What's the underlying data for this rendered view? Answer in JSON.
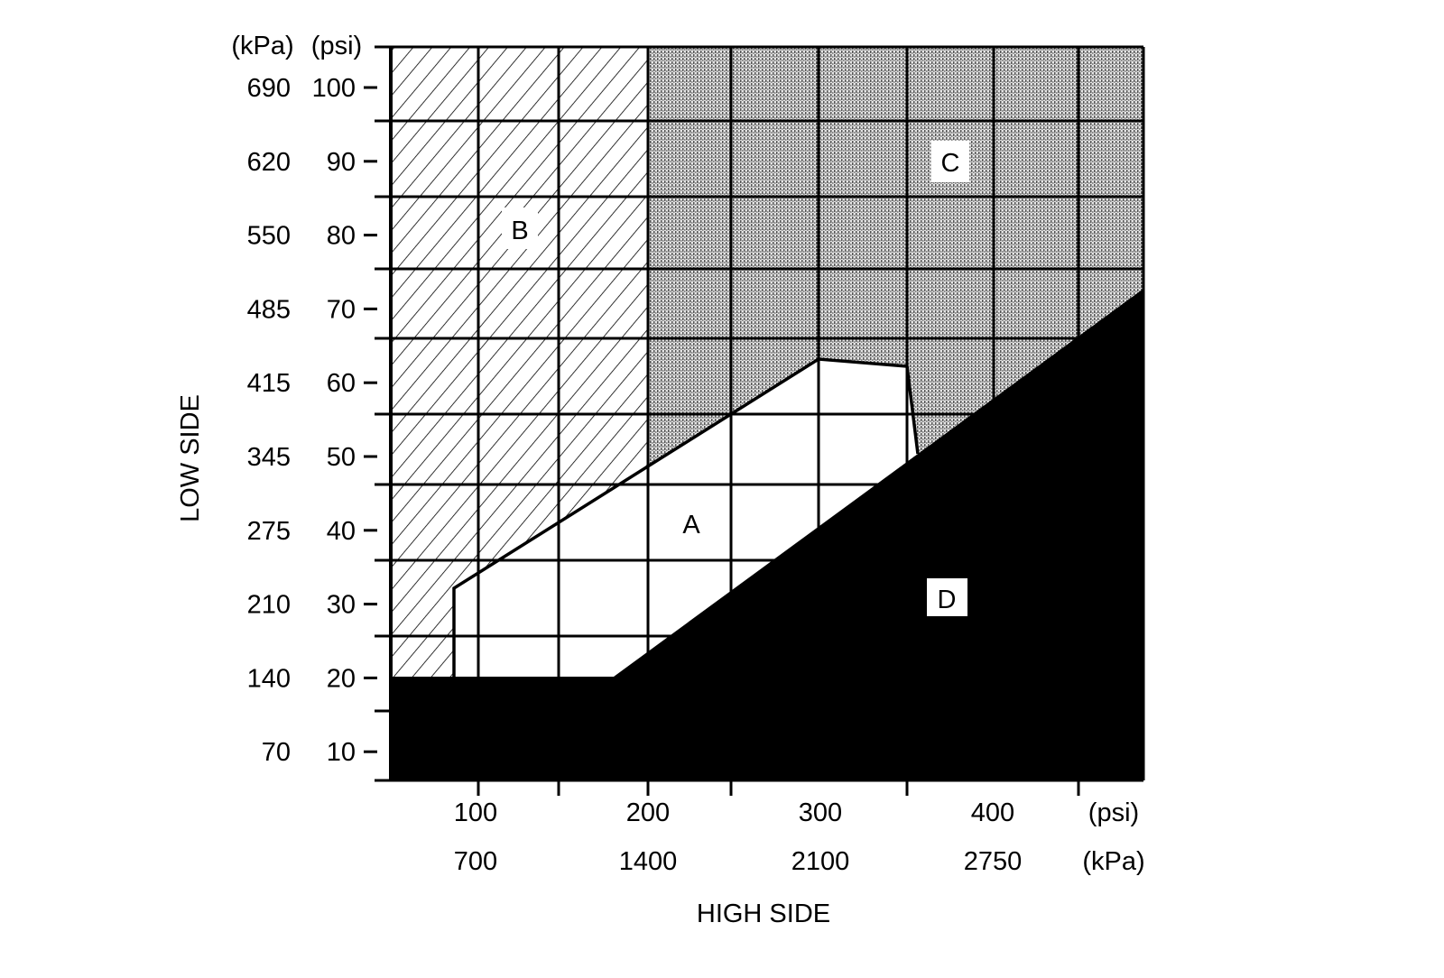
{
  "chart_data": {
    "type": "area",
    "title": "",
    "xlabel": "HIGH SIDE",
    "ylabel": "LOW SIDE",
    "y_units": {
      "kpa_header": "(kPa)",
      "psi_header": "(psi)"
    },
    "x_units": {
      "psi_label": "(psi)",
      "kpa_label": "(kPa)"
    },
    "y_ticks": [
      {
        "psi": "100",
        "kpa": "690",
        "v": 100
      },
      {
        "psi": "90",
        "kpa": "620",
        "v": 90
      },
      {
        "psi": "80",
        "kpa": "550",
        "v": 80
      },
      {
        "psi": "70",
        "kpa": "485",
        "v": 70
      },
      {
        "psi": "60",
        "kpa": "415",
        "v": 60
      },
      {
        "psi": "50",
        "kpa": "345",
        "v": 50
      },
      {
        "psi": "40",
        "kpa": "275",
        "v": 40
      },
      {
        "psi": "30",
        "kpa": "210",
        "v": 30
      },
      {
        "psi": "20",
        "kpa": "140",
        "v": 20
      },
      {
        "psi": "10",
        "kpa": "70",
        "v": 10
      }
    ],
    "x_ticks": [
      {
        "psi": "100",
        "kpa": "700",
        "v": 100
      },
      {
        "psi": "200",
        "kpa": "1400",
        "v": 200
      },
      {
        "psi": "300",
        "kpa": "2100",
        "v": 300
      },
      {
        "psi": "400",
        "kpa": "2750",
        "v": 400
      }
    ],
    "xlim": [
      50,
      440
    ],
    "ylim": [
      5,
      105
    ],
    "grid": true,
    "regions": [
      {
        "label": "A",
        "fill": "white",
        "polygon_psi": [
          [
            88,
            20
          ],
          [
            88,
            31.5
          ],
          [
            300,
            62.5
          ],
          [
            350,
            62
          ],
          [
            356,
            50
          ],
          [
            182,
            20
          ]
        ]
      },
      {
        "label": "B",
        "fill": "hatched",
        "polygon_psi": [
          [
            50,
            20
          ],
          [
            50,
            105
          ],
          [
            200,
            105
          ],
          [
            200,
            47
          ]
        ]
      },
      {
        "label": "C",
        "fill": "stippled",
        "polygon_psi": [
          [
            200,
            105
          ],
          [
            440,
            105
          ],
          [
            440,
            73
          ],
          [
            356,
            50
          ],
          [
            350,
            62
          ],
          [
            300,
            62.5
          ],
          [
            200,
            47
          ]
        ]
      },
      {
        "label": "D",
        "fill": "black",
        "polygon_psi": [
          [
            50,
            5
          ],
          [
            50,
            20
          ],
          [
            182,
            20
          ],
          [
            440,
            73
          ],
          [
            440,
            5
          ]
        ]
      }
    ]
  },
  "colors": {
    "black": "#000000",
    "stipple": "#c4c4c4",
    "white": "#ffffff"
  }
}
